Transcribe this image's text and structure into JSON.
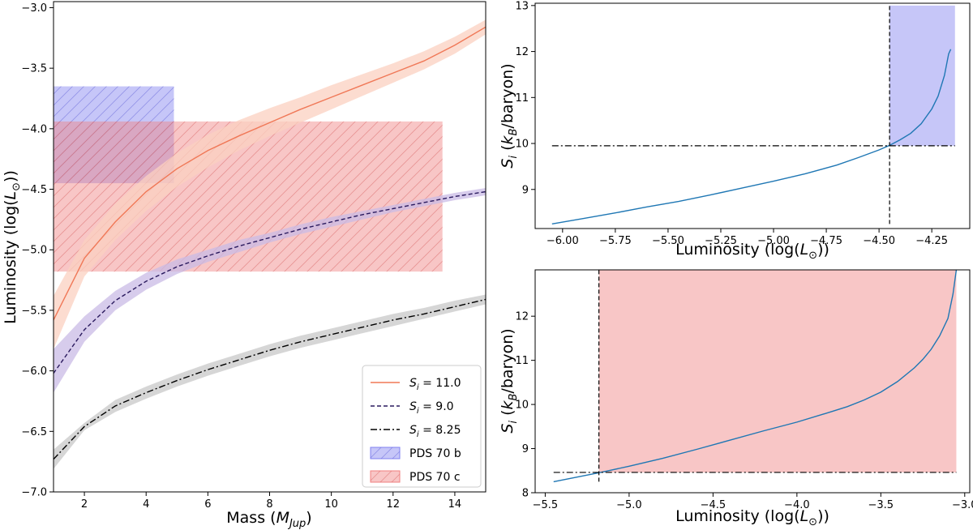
{
  "chart_data": [
    {
      "type": "line",
      "xlabel": "Mass (M_Jup)",
      "ylabel": "Luminosity (log(L⊙))",
      "xlim": [
        1,
        15
      ],
      "ylim": [
        -7.0,
        -2.95
      ],
      "xticks": [
        2,
        4,
        6,
        8,
        10,
        12,
        14
      ],
      "yticks": [
        -7.0,
        -6.5,
        -6.0,
        -5.5,
        -5.0,
        -4.5,
        -4.0,
        -3.5,
        -3.0
      ],
      "grid": false,
      "legend_position": "lower-right",
      "x": [
        1,
        2,
        3,
        4,
        5,
        6,
        7,
        8,
        9,
        10,
        11,
        12,
        13,
        14,
        15
      ],
      "series": [
        {
          "name": "S_i = 11.0",
          "legend_symbol": "S",
          "legend_sub": "i",
          "legend_value": "= 11.0",
          "color": "#f07857",
          "band_color": "#fbd0c0",
          "linestyle": "solid",
          "values": [
            -5.58,
            -5.07,
            -4.77,
            -4.52,
            -4.33,
            -4.18,
            -4.06,
            -3.95,
            -3.84,
            -3.74,
            -3.64,
            -3.54,
            -3.44,
            -3.31,
            -3.16
          ],
          "lower": [
            -5.82,
            -5.22,
            -4.92,
            -4.68,
            -4.48,
            -4.32,
            -4.18,
            -4.06,
            -3.95,
            -3.84,
            -3.73,
            -3.62,
            -3.51,
            -3.38,
            -3.22
          ],
          "upper": [
            -5.38,
            -4.92,
            -4.62,
            -4.39,
            -4.2,
            -4.05,
            -3.93,
            -3.83,
            -3.74,
            -3.64,
            -3.55,
            -3.46,
            -3.36,
            -3.24,
            -3.1
          ]
        },
        {
          "name": "S_i = 9.0",
          "legend_symbol": "S",
          "legend_sub": "i",
          "legend_value": "= 9.0",
          "color": "#2a1a5e",
          "band_color": "#c9bbe6",
          "linestyle": "dashed",
          "values": [
            -6.02,
            -5.66,
            -5.42,
            -5.26,
            -5.14,
            -5.05,
            -4.97,
            -4.9,
            -4.83,
            -4.77,
            -4.71,
            -4.66,
            -4.61,
            -4.56,
            -4.52
          ],
          "lower": [
            -6.18,
            -5.76,
            -5.5,
            -5.33,
            -5.2,
            -5.1,
            -5.02,
            -4.94,
            -4.87,
            -4.81,
            -4.75,
            -4.69,
            -4.64,
            -4.59,
            -4.55
          ],
          "upper": [
            -5.82,
            -5.55,
            -5.34,
            -5.19,
            -5.08,
            -5.0,
            -4.92,
            -4.86,
            -4.79,
            -4.73,
            -4.68,
            -4.63,
            -4.58,
            -4.53,
            -4.49
          ]
        },
        {
          "name": "S_i = 8.25",
          "legend_symbol": "S",
          "legend_sub": "i",
          "legend_value": "= 8.25",
          "color": "#000000",
          "band_color": "#c8c8c8",
          "linestyle": "dashdot",
          "values": [
            -6.73,
            -6.46,
            -6.29,
            -6.18,
            -6.08,
            -5.99,
            -5.91,
            -5.83,
            -5.76,
            -5.7,
            -5.64,
            -5.58,
            -5.53,
            -5.47,
            -5.41
          ],
          "lower": [
            -6.81,
            -6.49,
            -6.34,
            -6.23,
            -6.13,
            -6.04,
            -5.96,
            -5.88,
            -5.81,
            -5.75,
            -5.69,
            -5.63,
            -5.57,
            -5.51,
            -5.45
          ],
          "upper": [
            -6.65,
            -6.43,
            -6.24,
            -6.13,
            -6.03,
            -5.94,
            -5.86,
            -5.78,
            -5.71,
            -5.65,
            -5.59,
            -5.53,
            -5.48,
            -5.42,
            -5.37
          ]
        }
      ],
      "regions": [
        {
          "name": "PDS 70 b",
          "x": [
            1,
            4.9
          ],
          "y": [
            -4.45,
            -3.65
          ],
          "color": "#8080f0"
        },
        {
          "name": "PDS 70 c",
          "x": [
            1,
            13.6
          ],
          "y": [
            -5.18,
            -3.94
          ],
          "color": "#f08080"
        }
      ]
    },
    {
      "type": "line",
      "xlabel": "Luminosity (log(L⊙))",
      "ylabel": "S_i (k_B/baryon)",
      "xlim": [
        -6.13,
        -4.07
      ],
      "ylim": [
        8.15,
        13.05
      ],
      "xticks": [
        -6.0,
        -5.75,
        -5.5,
        -5.25,
        -5.0,
        -4.75,
        -4.5,
        -4.25
      ],
      "yticks": [
        9,
        10,
        11,
        12,
        13
      ],
      "grid": false,
      "x": [
        -6.05,
        -5.9,
        -5.75,
        -5.6,
        -5.45,
        -5.3,
        -5.15,
        -5.0,
        -4.85,
        -4.7,
        -4.6,
        -4.5,
        -4.45,
        -4.4,
        -4.35,
        -4.3,
        -4.25,
        -4.22,
        -4.19,
        -4.17,
        -4.16
      ],
      "series": [
        {
          "name": "",
          "color": "#1f77b4",
          "values": [
            8.25,
            8.37,
            8.49,
            8.62,
            8.74,
            8.88,
            9.03,
            9.18,
            9.34,
            9.53,
            9.69,
            9.86,
            9.96,
            10.08,
            10.22,
            10.43,
            10.75,
            11.03,
            11.48,
            11.95,
            12.05
          ]
        }
      ],
      "reference_lines": {
        "x": -4.45,
        "y": 9.95
      },
      "shaded_region": {
        "x": [
          -4.45,
          -4.14
        ],
        "y": [
          9.95,
          13.0
        ],
        "color": "#8080f0"
      }
    },
    {
      "type": "line",
      "xlabel": "Luminosity (log(L⊙))",
      "ylabel": "S_i (k_B/baryon)",
      "xlim": [
        -5.56,
        -2.97
      ],
      "ylim": [
        8.0,
        13.05
      ],
      "xticks": [
        -5.5,
        -5.0,
        -4.5,
        -4.0,
        -3.5,
        -3.0
      ],
      "yticks": [
        8,
        9,
        10,
        11,
        12
      ],
      "grid": false,
      "x": [
        -5.45,
        -5.17,
        -5.0,
        -4.8,
        -4.6,
        -4.4,
        -4.2,
        -4.0,
        -3.8,
        -3.7,
        -3.6,
        -3.5,
        -3.4,
        -3.3,
        -3.25,
        -3.2,
        -3.15,
        -3.1,
        -3.07,
        -3.05
      ],
      "series": [
        {
          "name": "",
          "color": "#1f77b4",
          "values": [
            8.25,
            8.46,
            8.6,
            8.78,
            8.98,
            9.19,
            9.4,
            9.6,
            9.83,
            9.95,
            10.1,
            10.28,
            10.52,
            10.83,
            11.02,
            11.25,
            11.55,
            11.95,
            12.5,
            13.05
          ]
        }
      ],
      "reference_lines": {
        "x": -5.18,
        "y": 8.46
      },
      "shaded_region": {
        "x": [
          -5.18,
          -3.05
        ],
        "y": [
          8.46,
          13.05
        ],
        "color": "#f08080"
      }
    }
  ]
}
